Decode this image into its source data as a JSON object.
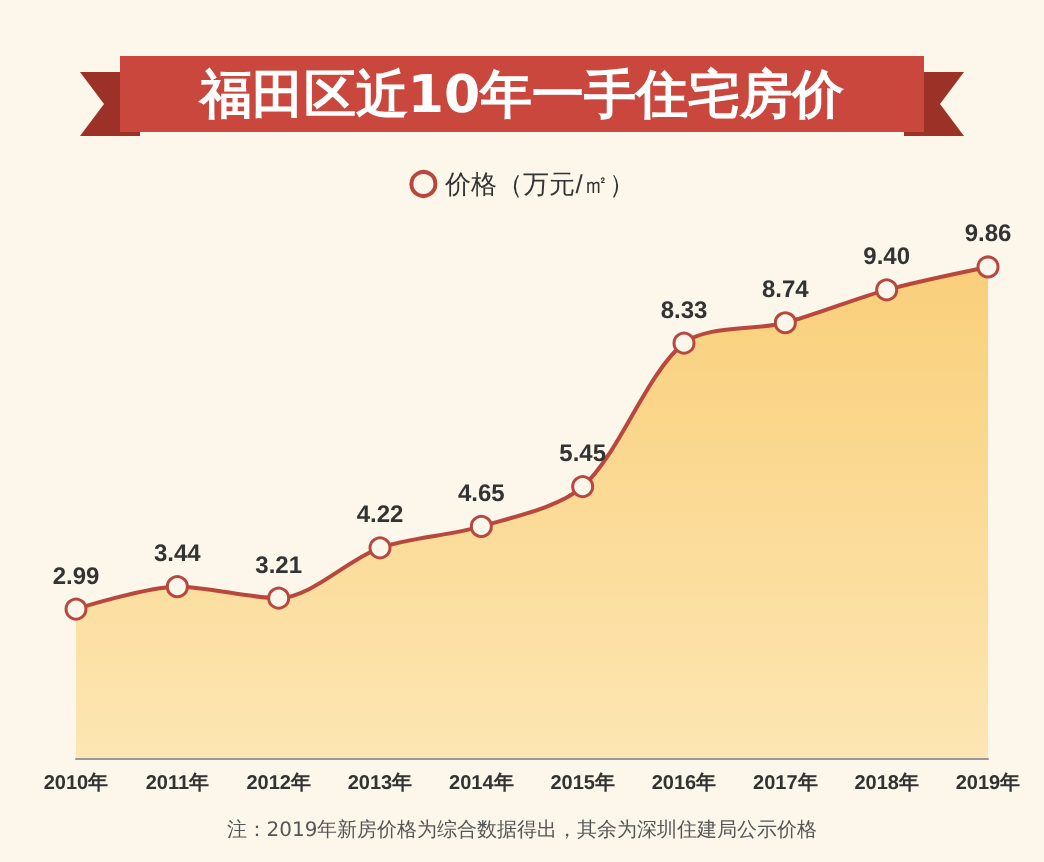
{
  "chart_data": {
    "type": "area",
    "title": "福田区近10年一手住宅房价",
    "categories": [
      "2010年",
      "2011年",
      "2012年",
      "2013年",
      "2014年",
      "2015年",
      "2016年",
      "2017年",
      "2018年",
      "2019年"
    ],
    "series": [
      {
        "name": "价格（万元/㎡）",
        "color": "#b8473d",
        "values": [
          2.99,
          3.44,
          3.21,
          4.22,
          4.65,
          5.45,
          8.33,
          8.74,
          9.4,
          9.86
        ],
        "value_labels": [
          "2.99",
          "3.44",
          "3.21",
          "4.22",
          "4.65",
          "5.45",
          "8.33",
          "8.74",
          "9.40",
          "9.86"
        ]
      }
    ],
    "marker": "circle",
    "legend": "top",
    "grid": false,
    "tick_labels": "x",
    "annotations": [
      "注：2019年新房价格为综合数据得出，其余为深圳住建局公示价格"
    ]
  }
}
